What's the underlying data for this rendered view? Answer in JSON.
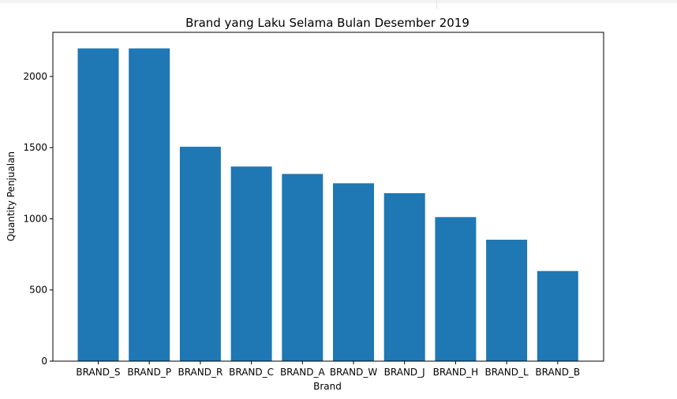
{
  "chart_data": {
    "type": "bar",
    "title": "Brand yang Laku Selama Bulan Desember 2019",
    "xlabel": "Brand",
    "ylabel": "Quantity Penjualan",
    "categories": [
      "BRAND_S",
      "BRAND_P",
      "BRAND_R",
      "BRAND_C",
      "BRAND_A",
      "BRAND_W",
      "BRAND_J",
      "BRAND_H",
      "BRAND_L",
      "BRAND_B"
    ],
    "values": [
      2197,
      2197,
      1506,
      1367,
      1315,
      1250,
      1180,
      1012,
      853,
      633
    ],
    "ylim": [
      0,
      2310
    ],
    "yticks": [
      0,
      500,
      1000,
      1500,
      2000
    ],
    "grid": false,
    "legend": "none",
    "bar_color": "#1f77b4"
  }
}
